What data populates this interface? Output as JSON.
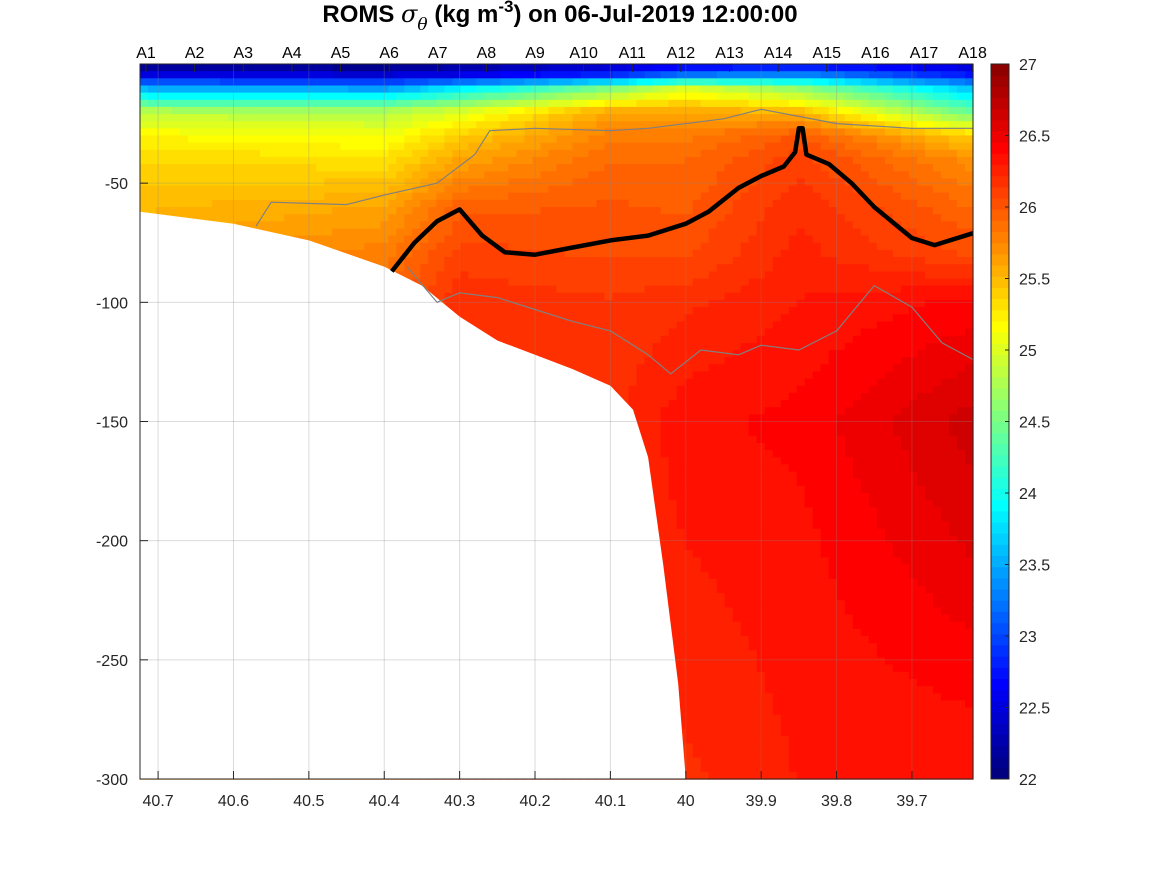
{
  "chart_data": {
    "type": "heatmap",
    "title": {
      "prefix": "ROMS ",
      "symbol": "σ",
      "subscript": "θ",
      "units_pre": " (kg m",
      "units_sup": "-3",
      "units_post": ") on 06-Jul-2019 12:00:00"
    },
    "xlabel": "",
    "ylabel": "",
    "xlim": [
      40.724,
      39.619
    ],
    "x_reversed": true,
    "ylim": [
      -300,
      0
    ],
    "xticks": [
      40.7,
      40.6,
      40.5,
      40.4,
      40.3,
      40.2,
      40.1,
      40,
      39.9,
      39.8,
      39.7
    ],
    "xtick_labels": [
      "40.7",
      "40.6",
      "40.5",
      "40.4",
      "40.3",
      "40.2",
      "40.1",
      "40",
      "39.9",
      "39.8",
      "39.7"
    ],
    "yticks": [
      -50,
      -100,
      -150,
      -200,
      -250,
      -300
    ],
    "ytick_labels": [
      "-50",
      "-100",
      "-150",
      "-200",
      "-250",
      "-300"
    ],
    "grid": true,
    "stations": {
      "labels": [
        "A1",
        "A2",
        "A3",
        "A4",
        "A5",
        "A6",
        "A7",
        "A8",
        "A9",
        "A10",
        "A11",
        "A12",
        "A13",
        "A14",
        "A15",
        "A16",
        "A17",
        "A18"
      ],
      "lon_start": 40.716,
      "lon_step": -0.0645
    },
    "colorbar": {
      "range": [
        22,
        27
      ],
      "ticks": [
        22,
        22.5,
        23,
        23.5,
        24,
        24.5,
        25,
        25.5,
        26,
        26.5,
        27
      ],
      "tick_labels": [
        "22",
        "22.5",
        "23",
        "23.5",
        "24",
        "24.5",
        "25",
        "25.5",
        "26",
        "26.5",
        "27"
      ],
      "colormap": "jet",
      "placement": "right"
    },
    "field_profiles": {
      "depths": [
        0,
        5,
        10,
        20,
        30,
        40,
        60,
        80,
        100,
        150,
        200,
        300
      ],
      "columns": [
        {
          "lon": 40.724,
          "sigma": [
            22.0,
            22.6,
            23.5,
            24.8,
            25.2,
            25.35,
            25.5,
            25.6,
            25.6,
            25.6,
            25.6,
            25.6
          ]
        },
        {
          "lon": 40.4,
          "sigma": [
            22.0,
            22.5,
            23.4,
            24.8,
            25.1,
            25.3,
            25.6,
            25.8,
            25.9,
            25.9,
            25.9,
            25.9
          ]
        },
        {
          "lon": 40.3,
          "sigma": [
            22.1,
            22.6,
            23.8,
            25.0,
            25.4,
            25.6,
            25.95,
            26.1,
            26.2,
            26.2,
            26.2,
            26.2
          ]
        },
        {
          "lon": 40.1,
          "sigma": [
            22.3,
            22.9,
            24.5,
            25.6,
            25.8,
            25.9,
            26.0,
            26.05,
            26.15,
            26.2,
            26.2,
            26.2
          ]
        },
        {
          "lon": 40.0,
          "sigma": [
            22.5,
            23.3,
            25.0,
            25.6,
            25.8,
            25.9,
            25.97,
            26.05,
            26.2,
            26.35,
            26.3,
            26.2
          ]
        },
        {
          "lon": 39.85,
          "sigma": [
            22.6,
            23.4,
            24.6,
            25.5,
            26.0,
            26.1,
            26.2,
            26.25,
            26.3,
            26.4,
            26.35,
            26.3
          ]
        },
        {
          "lon": 39.619,
          "sigma": [
            22.4,
            22.8,
            23.6,
            24.4,
            25.4,
            25.7,
            25.9,
            26.05,
            26.4,
            26.65,
            26.55,
            26.3
          ]
        }
      ]
    },
    "bathymetry": {
      "lon": [
        40.724,
        40.6,
        40.5,
        40.4,
        40.35,
        40.3,
        40.25,
        40.2,
        40.15,
        40.1,
        40.07,
        40.05,
        40.03,
        40.01,
        40.0
      ],
      "depth": [
        62,
        67,
        74,
        85,
        93,
        106,
        116,
        122,
        128,
        135,
        145,
        165,
        210,
        260,
        300
      ]
    },
    "contours": [
      {
        "level": 26.0,
        "style": "thick-black",
        "lon": [
          40.39,
          40.36,
          40.33,
          40.3,
          40.27,
          40.24,
          40.2,
          40.15,
          40.1,
          40.05,
          40.0,
          39.97,
          39.93,
          39.9,
          39.87,
          39.855,
          39.85,
          39.845,
          39.84,
          39.81,
          39.78,
          39.75,
          39.7,
          39.67,
          39.619
        ],
        "depth": [
          87,
          75,
          66,
          61,
          72,
          79,
          80,
          77,
          74,
          72,
          67,
          62,
          52,
          47,
          43,
          37,
          27,
          27,
          38,
          42,
          50,
          60,
          73,
          76,
          71
        ]
      },
      {
        "level": 25.5,
        "style": "thin-grey",
        "lon": [
          40.57,
          40.55,
          40.45,
          40.4,
          40.33,
          40.28,
          40.26,
          40.2,
          40.1,
          40.05,
          39.95,
          39.9,
          39.85,
          39.8,
          39.7,
          39.619
        ],
        "depth": [
          68,
          58,
          59,
          55,
          50,
          38,
          28,
          27,
          28,
          27,
          23,
          19,
          22,
          25,
          27,
          27
        ]
      },
      {
        "level": 26.2,
        "style": "thin-grey",
        "lon": [
          40.37,
          40.33,
          40.3,
          40.25,
          40.2,
          40.15,
          40.1,
          40.05,
          40.02,
          39.98,
          39.93,
          39.9,
          39.85,
          39.8,
          39.75,
          39.7,
          39.66,
          39.619
        ],
        "depth": [
          85,
          100,
          96,
          98,
          103,
          108,
          112,
          122,
          130,
          120,
          122,
          118,
          120,
          112,
          93,
          102,
          117,
          124
        ]
      }
    ]
  }
}
